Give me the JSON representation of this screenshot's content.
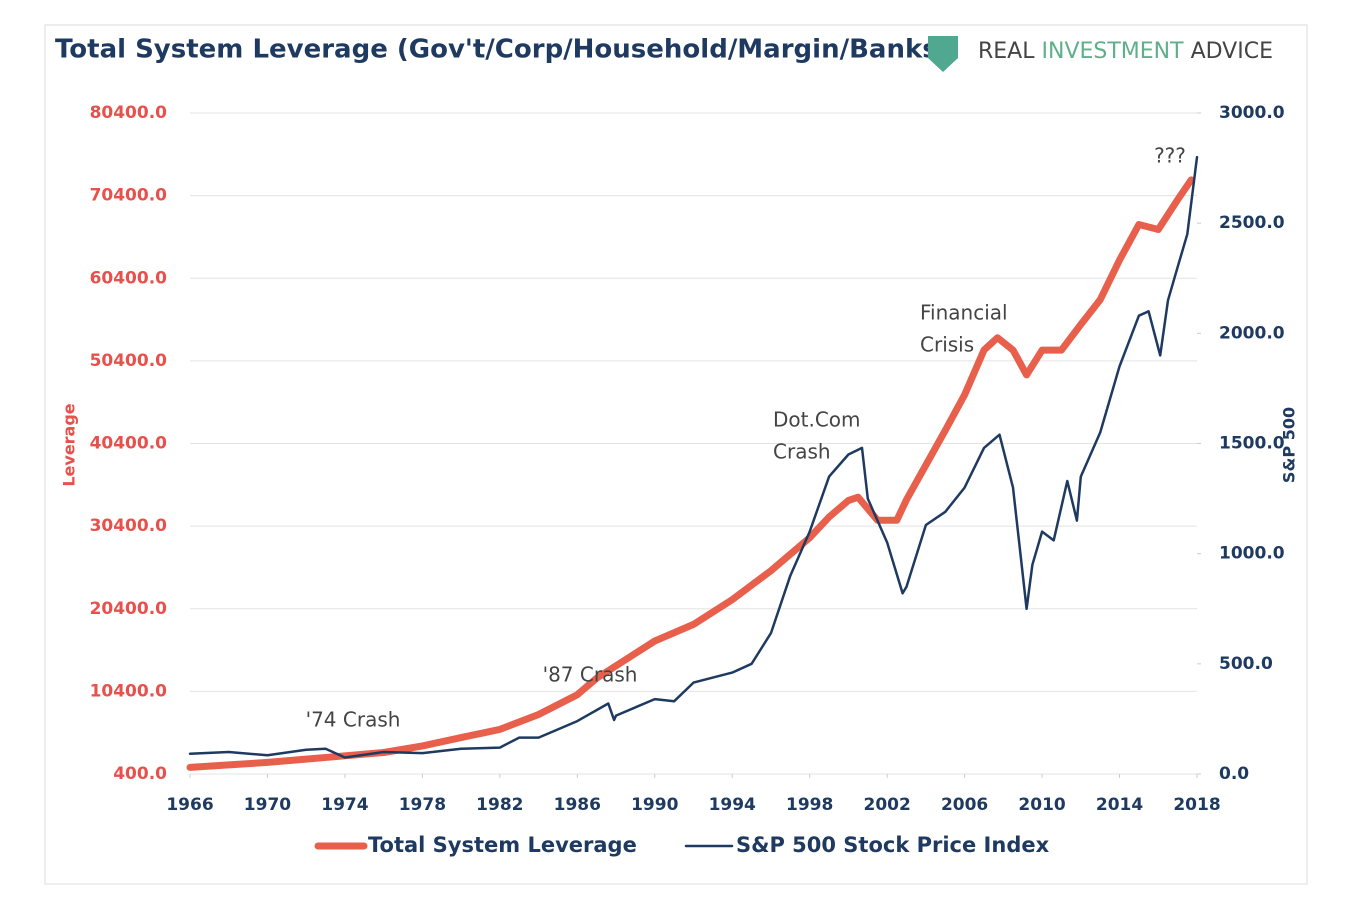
{
  "chart_data": {
    "type": "line",
    "title": "Total System Leverage (Gov't/Corp/Household/Margin/Banks)",
    "brand": [
      "REAL",
      "INVESTMENT",
      "ADVICE"
    ],
    "ylabel": "Leverage",
    "y2label": "S&P 500",
    "xlim": [
      1966,
      2018
    ],
    "xticks": [
      1966,
      1970,
      1974,
      1978,
      1982,
      1986,
      1990,
      1994,
      1998,
      2002,
      2006,
      2010,
      2014,
      2018
    ],
    "ylim": [
      400,
      80400
    ],
    "yticks": [
      {
        "value": 400,
        "label": "400.0"
      },
      {
        "value": 10400,
        "label": "10400.0"
      },
      {
        "value": 20400,
        "label": "20400.0"
      },
      {
        "value": 30400,
        "label": "30400.0"
      },
      {
        "value": 40400,
        "label": "40400.0"
      },
      {
        "value": 50400,
        "label": "50400.0"
      },
      {
        "value": 60400,
        "label": "60400.0"
      },
      {
        "value": 70400,
        "label": "70400.0"
      },
      {
        "value": 80400,
        "label": "80400.0"
      }
    ],
    "y2lim": [
      0,
      3000
    ],
    "y2ticks": [
      {
        "value": 0,
        "label": "0.0"
      },
      {
        "value": 500,
        "label": "500.0"
      },
      {
        "value": 1000,
        "label": "1000.0"
      },
      {
        "value": 1500,
        "label": "1500.0"
      },
      {
        "value": 2000,
        "label": "2000.0"
      },
      {
        "value": 2500,
        "label": "2500.0"
      },
      {
        "value": 3000,
        "label": "3000.0"
      }
    ],
    "grid": true,
    "legend": "bottom",
    "annotations": [
      [
        "'74 Crash"
      ],
      [
        "'87 Crash"
      ],
      [
        "Dot.Com",
        "Crash"
      ],
      [
        "Financial",
        "Crisis"
      ],
      [
        "???"
      ]
    ],
    "series": [
      {
        "name": "Total System Leverage",
        "color": "#e8604c",
        "x": [
          1966,
          1968,
          1970,
          1972,
          1974,
          1976,
          1978,
          1980,
          1982,
          1984,
          1986,
          1987,
          1988,
          1990,
          1992,
          1994,
          1996,
          1998,
          1999,
          2000,
          2000.5,
          2001.5,
          2002.5,
          2003,
          2004,
          2005,
          2006,
          2007,
          2007.7,
          2008.5,
          2009.2,
          2010,
          2011,
          2012,
          2013,
          2014,
          2015,
          2016,
          2017,
          2017.7
        ],
        "values": [
          1200,
          1500,
          1800,
          2200,
          2600,
          3000,
          3800,
          4800,
          5800,
          7600,
          10000,
          12000,
          13500,
          16500,
          18500,
          21500,
          25000,
          29000,
          31500,
          33500,
          33900,
          31100,
          31100,
          33600,
          37800,
          42000,
          46300,
          51700,
          53200,
          51700,
          48700,
          51700,
          51700,
          54800,
          57800,
          62600,
          66900,
          66300,
          69900,
          72300
        ]
      },
      {
        "name": "S&P 500 Stock Price Index",
        "color": "#1f3a60",
        "axis": "y2",
        "x": [
          1966,
          1968,
          1970,
          1972,
          1973,
          1974,
          1976,
          1978,
          1980,
          1982,
          1983,
          1984,
          1986,
          1987.6,
          1987.9,
          1988,
          1990,
          1991,
          1992,
          1994,
          1995,
          1996,
          1997,
          1998,
          1999,
          2000,
          2000.7,
          2001,
          2002,
          2002.8,
          2003,
          2004,
          2005,
          2006,
          2007,
          2007.8,
          2008.5,
          2009.2,
          2009.5,
          2010,
          2010.6,
          2011.3,
          2011.8,
          2012,
          2013,
          2014,
          2015,
          2015.5,
          2016.1,
          2016.5,
          2017,
          2017.5,
          2018
        ],
        "values": [
          92,
          100,
          85,
          110,
          115,
          75,
          100,
          95,
          115,
          120,
          165,
          165,
          240,
          320,
          245,
          265,
          340,
          330,
          415,
          460,
          500,
          640,
          900,
          1100,
          1350,
          1450,
          1480,
          1250,
          1050,
          820,
          850,
          1130,
          1190,
          1300,
          1480,
          1540,
          1300,
          750,
          950,
          1100,
          1060,
          1330,
          1150,
          1350,
          1550,
          1850,
          2080,
          2100,
          1900,
          2150,
          2300,
          2450,
          2800
        ]
      }
    ]
  }
}
